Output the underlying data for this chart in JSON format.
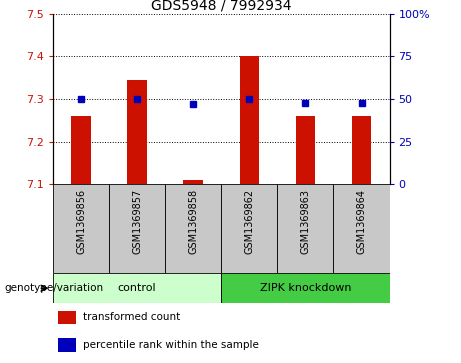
{
  "title": "GDS5948 / 7992934",
  "samples": [
    "GSM1369856",
    "GSM1369857",
    "GSM1369858",
    "GSM1369862",
    "GSM1369863",
    "GSM1369864"
  ],
  "bar_values": [
    7.26,
    7.345,
    7.11,
    7.402,
    7.26,
    7.26
  ],
  "bar_base": 7.1,
  "percentile_values": [
    50,
    50,
    47,
    50,
    48,
    48
  ],
  "left_ylim": [
    7.1,
    7.5
  ],
  "right_ylim": [
    0,
    100
  ],
  "left_yticks": [
    7.1,
    7.2,
    7.3,
    7.4,
    7.5
  ],
  "right_yticks": [
    0,
    25,
    50,
    75,
    100
  ],
  "right_yticklabels": [
    "0",
    "25",
    "50",
    "75",
    "100%"
  ],
  "bar_color": "#cc1100",
  "dot_color": "#0000bb",
  "groups": [
    {
      "label": "control",
      "indices": [
        0,
        1,
        2
      ],
      "color": "#ccffcc"
    },
    {
      "label": "ZIPK knockdown",
      "indices": [
        3,
        4,
        5
      ],
      "color": "#44cc44"
    }
  ],
  "group_label_prefix": "genotype/variation",
  "legend_entries": [
    {
      "color": "#cc1100",
      "label": "transformed count"
    },
    {
      "color": "#0000bb",
      "label": "percentile rank within the sample"
    }
  ],
  "sample_box_color": "#c8c8c8",
  "bar_width": 0.35
}
